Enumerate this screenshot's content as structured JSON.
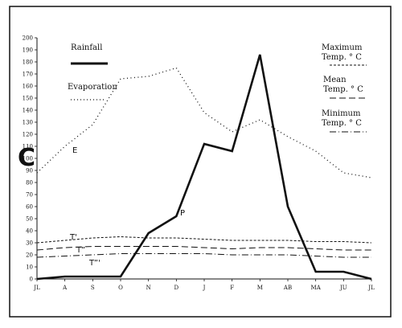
{
  "chart_data": {
    "type": "line",
    "panel_letter": "C",
    "x": [
      "JL",
      "A",
      "S",
      "O",
      "N",
      "D",
      "J",
      "F",
      "M",
      "AB",
      "MA",
      "JU",
      "JL"
    ],
    "ylim": [
      0,
      200
    ],
    "ytick_labels": [
      "0",
      "10",
      "20",
      "30",
      "40",
      "50",
      "60",
      "70",
      "80",
      "90",
      "100",
      "110",
      "120",
      "130",
      "140",
      "150",
      "160",
      "170",
      "180",
      "190",
      "200"
    ],
    "legend": {
      "rainfall": "Rainfall",
      "evaporation": "Evaporation",
      "max_line1": "Maximum",
      "max_line2": "Temp. ° C",
      "mean_line1": "Mean",
      "mean_line2": "Temp. ° C",
      "min_line1": "Minimum",
      "min_line2": "Temp. ° C"
    },
    "annotations": {
      "E": "E",
      "P": "P",
      "Tmax": "T'",
      "Tmean": "T”",
      "Tmin": "T”'"
    },
    "series": [
      {
        "name": "Rainfall",
        "style": "solid-thick",
        "color": "#111111",
        "values": [
          0,
          2,
          2,
          2,
          38,
          52,
          112,
          106,
          186,
          60,
          6,
          6,
          0
        ]
      },
      {
        "name": "Evaporation",
        "style": "dotted",
        "color": "#111111",
        "values": [
          88,
          110,
          128,
          166,
          168,
          175,
          138,
          122,
          132,
          118,
          106,
          88,
          84
        ]
      },
      {
        "name": "Maximum",
        "style": "dashed",
        "color": "#111111",
        "values": [
          30,
          32,
          34,
          35,
          34,
          34,
          33,
          32,
          32,
          32,
          31,
          31,
          30
        ]
      },
      {
        "name": "Mean",
        "style": "longdash",
        "color": "#111111",
        "values": [
          24,
          26,
          27,
          27,
          27,
          27,
          26,
          25,
          26,
          26,
          25,
          24,
          24
        ]
      },
      {
        "name": "Minimum",
        "style": "dashdot",
        "color": "#111111",
        "values": [
          18,
          19,
          20,
          21,
          21,
          21,
          21,
          20,
          20,
          20,
          19,
          18,
          18
        ]
      }
    ]
  }
}
